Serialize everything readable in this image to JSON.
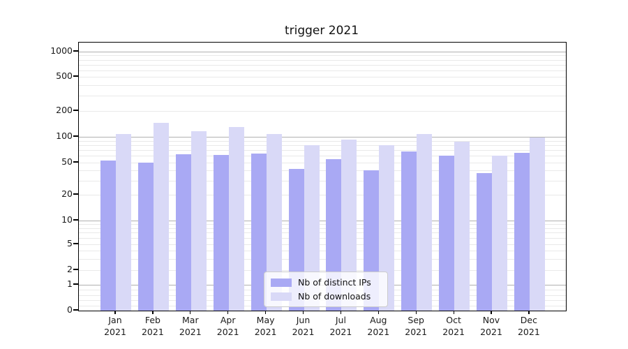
{
  "title": "trigger 2021",
  "chart_data": {
    "type": "bar",
    "title": "trigger 2021",
    "xlabel": "",
    "ylabel": "",
    "yscale": "symlog",
    "ylim": [
      0,
      1100
    ],
    "grid": true,
    "legend_position": "lower-center",
    "year": "2021",
    "categories": [
      "Jan",
      "Feb",
      "Mar",
      "Apr",
      "May",
      "Jun",
      "Jul",
      "Aug",
      "Sep",
      "Oct",
      "Nov",
      "Dec"
    ],
    "y_ticks": [
      0,
      1,
      2,
      5,
      10,
      20,
      50,
      100,
      200,
      500,
      1000
    ],
    "major_grid_values": [
      1,
      10,
      100,
      1000
    ],
    "minor_grid_values": [
      0.2,
      0.4,
      0.6,
      0.8,
      2,
      3,
      4,
      5,
      6,
      7,
      8,
      9,
      20,
      30,
      40,
      50,
      60,
      70,
      80,
      90,
      200,
      300,
      400,
      500,
      600,
      700,
      800,
      900
    ],
    "series": [
      {
        "name": "Nb of distinct IPs",
        "color": "#a9a9f4",
        "values": [
          53,
          50,
          63,
          62,
          64,
          42,
          55,
          40,
          68,
          60,
          37,
          65
        ]
      },
      {
        "name": "Nb of downloads",
        "color": "#d9d9f7",
        "values": [
          108,
          145,
          116,
          129,
          108,
          80,
          93,
          80,
          108,
          88,
          60,
          98
        ]
      }
    ]
  },
  "colors": {
    "major_grid": "#b0b0b0",
    "minor_grid": "#e9e9e9",
    "axis": "#000000",
    "text": "#1a1a1a"
  }
}
